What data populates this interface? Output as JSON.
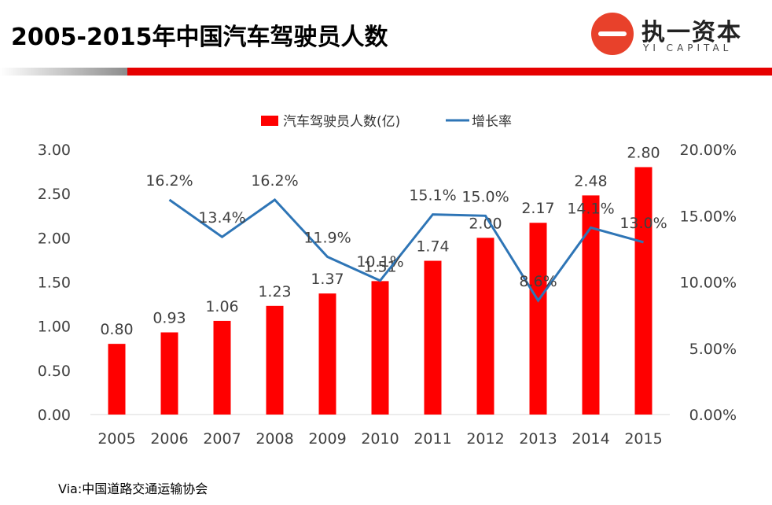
{
  "header": {
    "title": "2005-2015年中国汽车驾驶员人数",
    "logo_cn": "执一资本",
    "logo_en": "YI CAPITAL"
  },
  "footer": {
    "source": "Via:中国道路交通运输协会"
  },
  "colors": {
    "bar": "#ff0000",
    "line": "#2e75b6",
    "accent": "#e60000"
  },
  "chart_data": {
    "type": "bar",
    "categories": [
      "2005",
      "2006",
      "2007",
      "2008",
      "2009",
      "2010",
      "2011",
      "2012",
      "2013",
      "2014",
      "2015"
    ],
    "series": [
      {
        "name": "汽车驾驶员人数(亿)",
        "type": "bar",
        "axis": "left",
        "values": [
          0.8,
          0.93,
          1.06,
          1.23,
          1.37,
          1.51,
          1.74,
          2.0,
          2.17,
          2.48,
          2.8
        ],
        "labels": [
          "0.80",
          "0.93",
          "1.06",
          "1.23",
          "1.37",
          "1.51",
          "1.74",
          "2.00",
          "2.17",
          "2.48",
          "2.80"
        ]
      },
      {
        "name": "增长率",
        "type": "line",
        "axis": "right",
        "values": [
          null,
          16.2,
          13.4,
          16.2,
          11.9,
          10.1,
          15.1,
          15.0,
          8.6,
          14.1,
          13.0
        ],
        "labels": [
          "",
          "16.2%",
          "13.4%",
          "16.2%",
          "11.9%",
          "10.1%",
          "15.1%",
          "15.0%",
          "8.6%",
          "14.1%",
          "13.0%"
        ]
      }
    ],
    "y_left": {
      "range": [
        0,
        3
      ],
      "ticks": [
        "0.00",
        "0.50",
        "1.00",
        "1.50",
        "2.00",
        "2.50",
        "3.00"
      ]
    },
    "y_right": {
      "range": [
        0,
        20
      ],
      "ticks": [
        "0.00%",
        "5.00%",
        "10.00%",
        "15.00%",
        "20.00%"
      ]
    },
    "legend": {
      "position": "top"
    },
    "grid": false
  }
}
